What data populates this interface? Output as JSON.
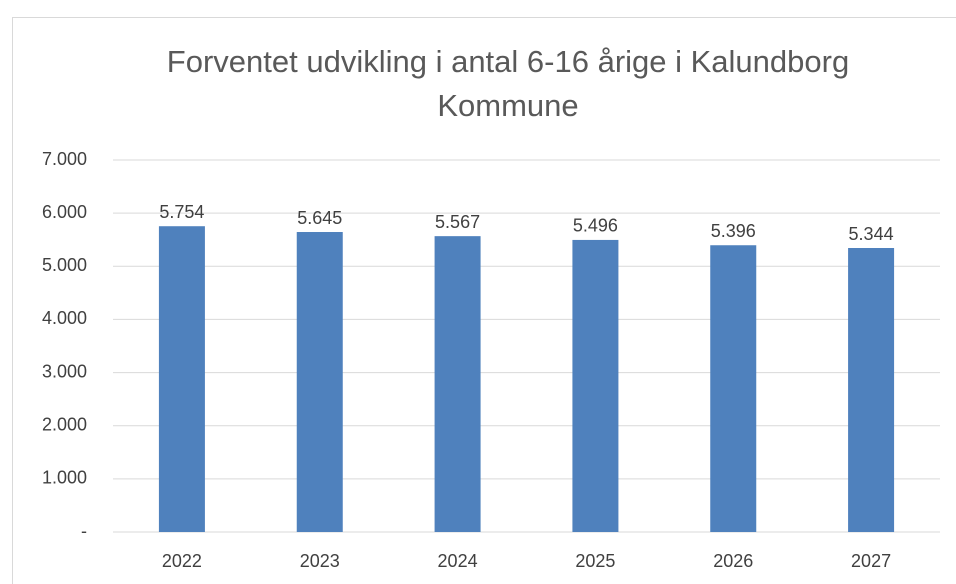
{
  "chart_data": {
    "type": "bar",
    "title": "Forventet udvikling i antal 6-16 årige i Kalundborg Kommune",
    "categories": [
      "2022",
      "2023",
      "2024",
      "2025",
      "2026",
      "2027"
    ],
    "values": [
      5754,
      5645,
      5567,
      5496,
      5396,
      5344
    ],
    "value_labels": [
      "5.754",
      "5.645",
      "5.567",
      "5.496",
      "5.396",
      "5.344"
    ],
    "color": "#4f81bd",
    "ylim": [
      0,
      7000
    ],
    "yticks": [
      {
        "value": 0,
        "label": "-"
      },
      {
        "value": 1000,
        "label": "1.000"
      },
      {
        "value": 2000,
        "label": "2.000"
      },
      {
        "value": 3000,
        "label": "3.000"
      },
      {
        "value": 4000,
        "label": "4.000"
      },
      {
        "value": 5000,
        "label": "5.000"
      },
      {
        "value": 6000,
        "label": "6.000"
      },
      {
        "value": 7000,
        "label": "7.000"
      }
    ],
    "grid": true
  }
}
